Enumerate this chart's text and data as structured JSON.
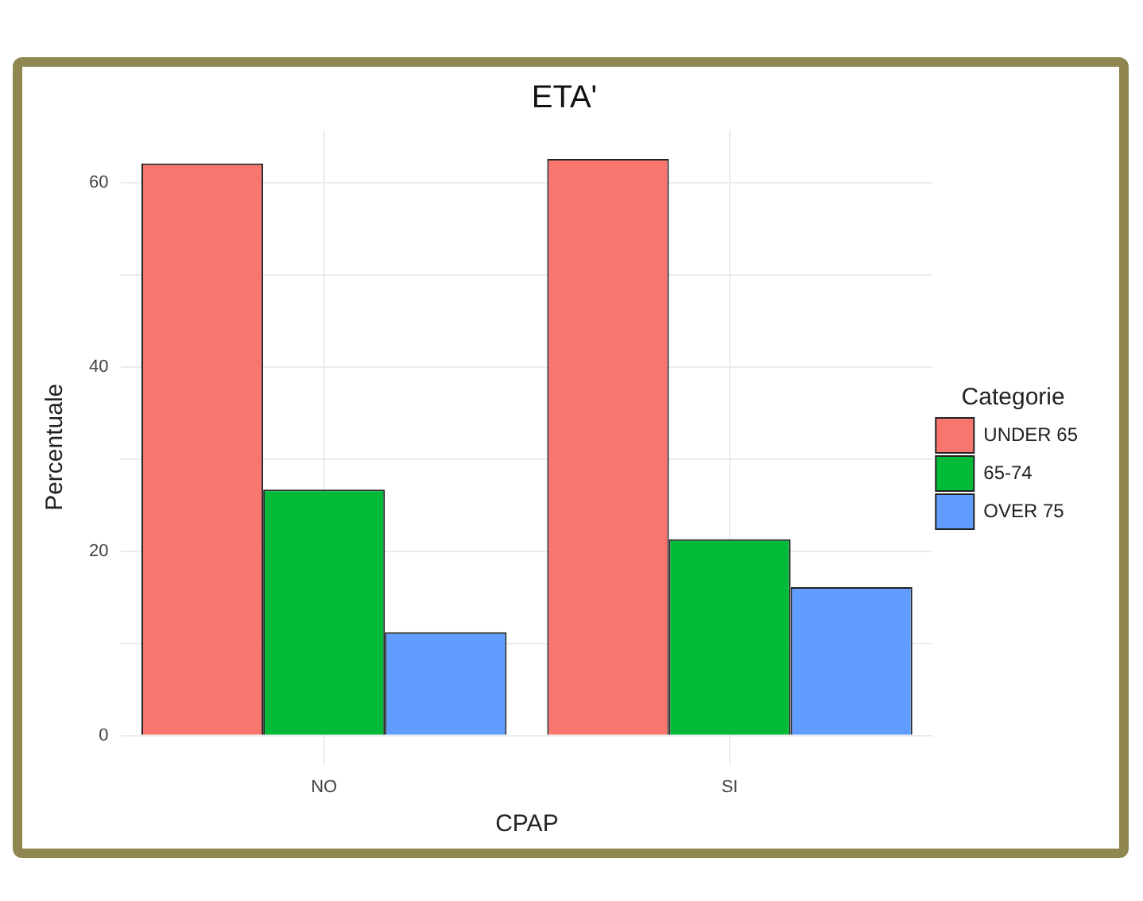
{
  "chart_data": {
    "type": "bar",
    "title": "ETA'",
    "xlabel": "CPAP",
    "ylabel": "Percentuale",
    "legend_title": "Categorie",
    "categories": [
      "NO",
      "SI"
    ],
    "series": [
      {
        "name": "UNDER 65",
        "color": "#f8766d",
        "values": [
          62.1,
          62.6
        ]
      },
      {
        "name": "65-74",
        "color": "#00ba38",
        "values": [
          26.7,
          21.3
        ]
      },
      {
        "name": "OVER 75",
        "color": "#619cff",
        "values": [
          11.2,
          16.1
        ]
      }
    ],
    "ylim": [
      -3.1,
      65.7
    ],
    "yticks": [
      0,
      {
        "value": 10,
        "label": null
      },
      20,
      {
        "value": 30,
        "label": null
      },
      40,
      {
        "value": 50,
        "label": null
      },
      60
    ],
    "grid": true,
    "legend": "right"
  }
}
